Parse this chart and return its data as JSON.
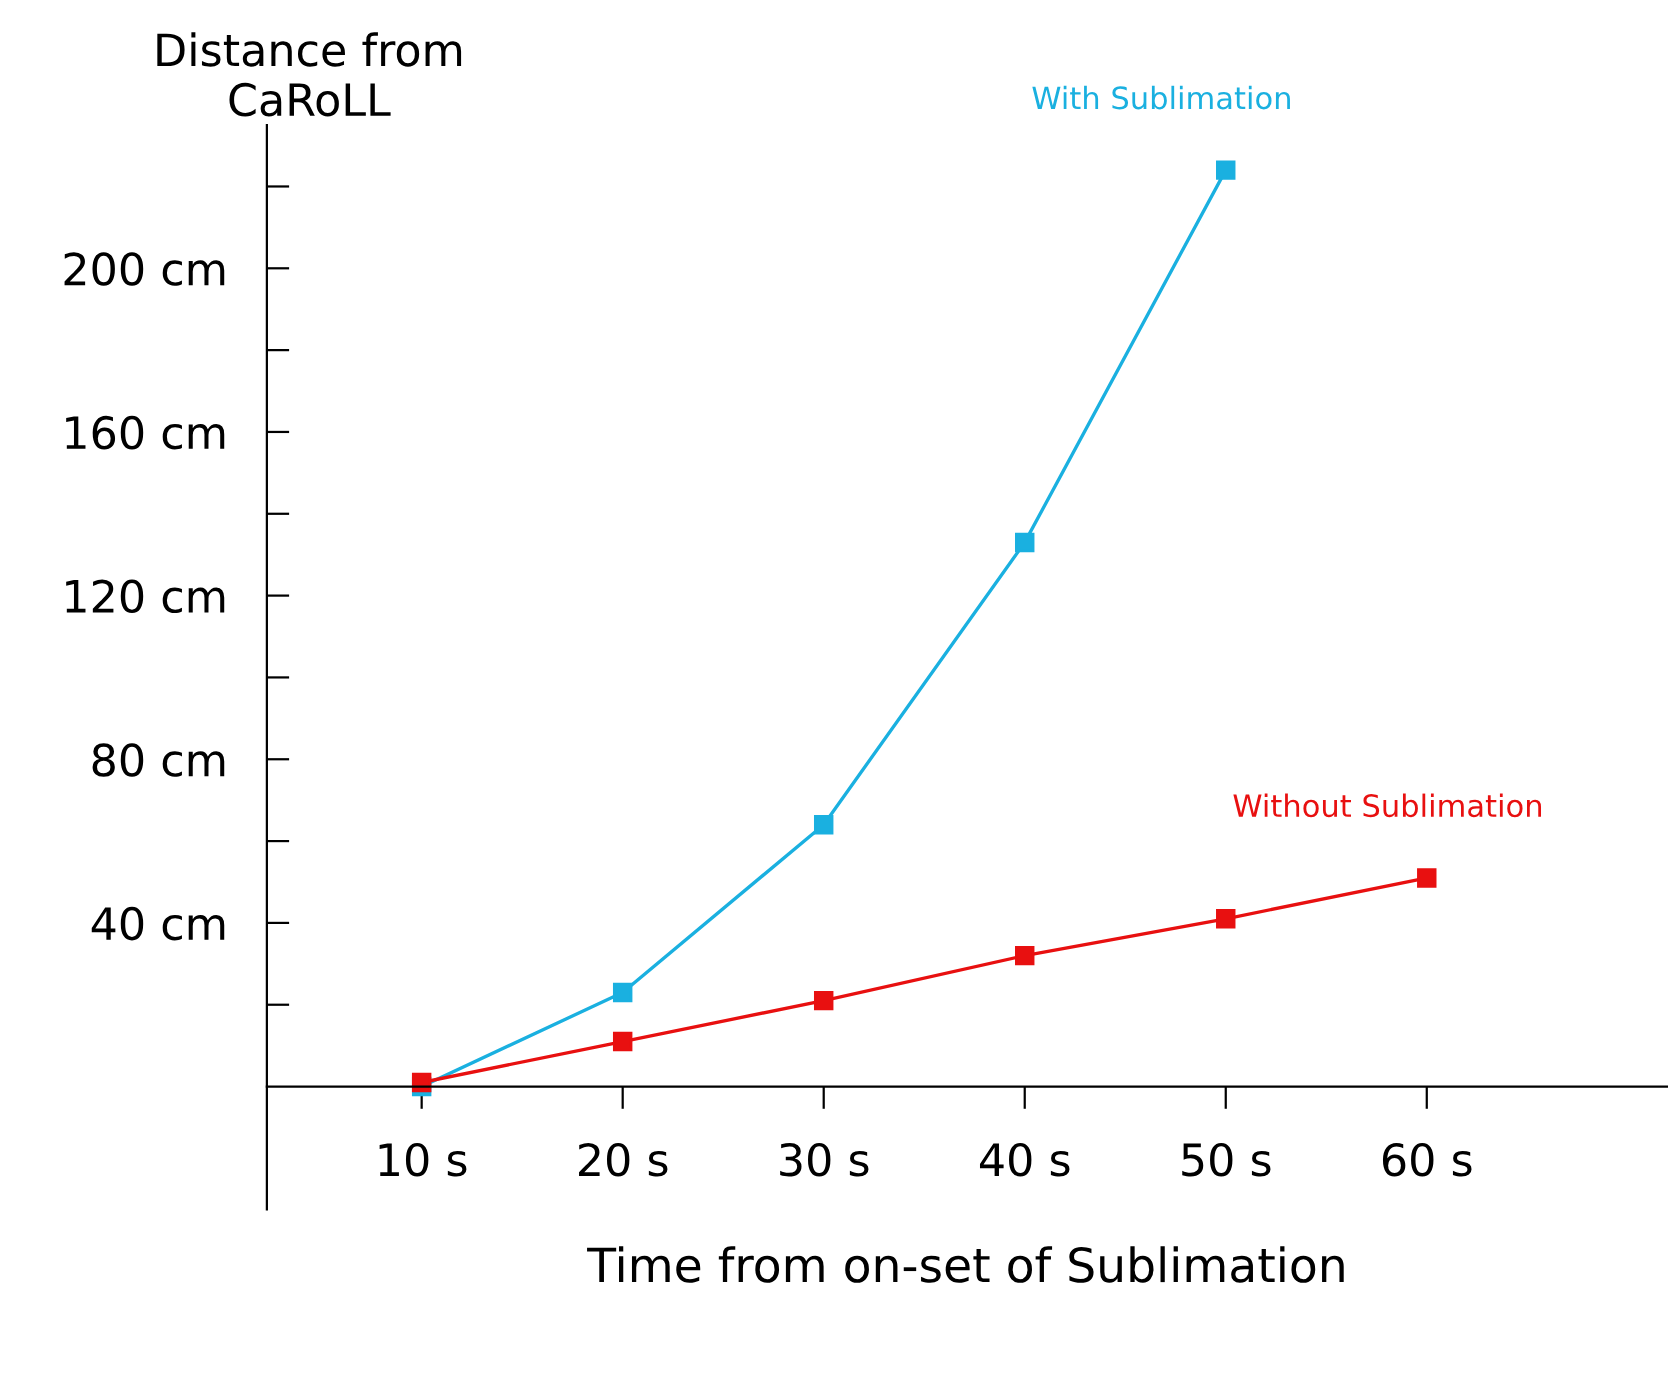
{
  "chart_data": {
    "type": "line",
    "xlabel": "Time from on-set of Sublimation",
    "ylabel": "Distance from\nCaRoLL",
    "x": [
      10,
      20,
      30,
      40,
      50,
      60
    ],
    "series": [
      {
        "name": "With Sublimation",
        "color": "#1ab0e0",
        "x": [
          10,
          20,
          30,
          40,
          50
        ],
        "values": [
          0,
          23,
          64,
          133,
          224
        ]
      },
      {
        "name": "Without Sublimation",
        "color": "#e81010",
        "values": [
          1,
          11,
          21,
          32,
          41,
          51
        ]
      }
    ],
    "xlim": [
      2.3,
      72
    ],
    "ylim": [
      -30,
      235
    ],
    "xticks": [
      {
        "value": 10,
        "label": "10 s"
      },
      {
        "value": 20,
        "label": "20 s"
      },
      {
        "value": 30,
        "label": "30 s"
      },
      {
        "value": 40,
        "label": "40 s"
      },
      {
        "value": 50,
        "label": "50 s"
      },
      {
        "value": 60,
        "label": "60 s"
      }
    ],
    "yticks": [
      {
        "value": 20,
        "label": null
      },
      {
        "value": 40,
        "label": "40 cm"
      },
      {
        "value": 60,
        "label": null
      },
      {
        "value": 80,
        "label": "80 cm"
      },
      {
        "value": 100,
        "label": null
      },
      {
        "value": 120,
        "label": "120 cm"
      },
      {
        "value": 140,
        "label": null
      },
      {
        "value": 160,
        "label": "160 cm"
      },
      {
        "value": 180,
        "label": null
      },
      {
        "value": 200,
        "label": "200 cm"
      },
      {
        "value": 220,
        "label": null
      }
    ],
    "marker": "square",
    "line_style": "solid",
    "grid": false,
    "legend": false
  }
}
